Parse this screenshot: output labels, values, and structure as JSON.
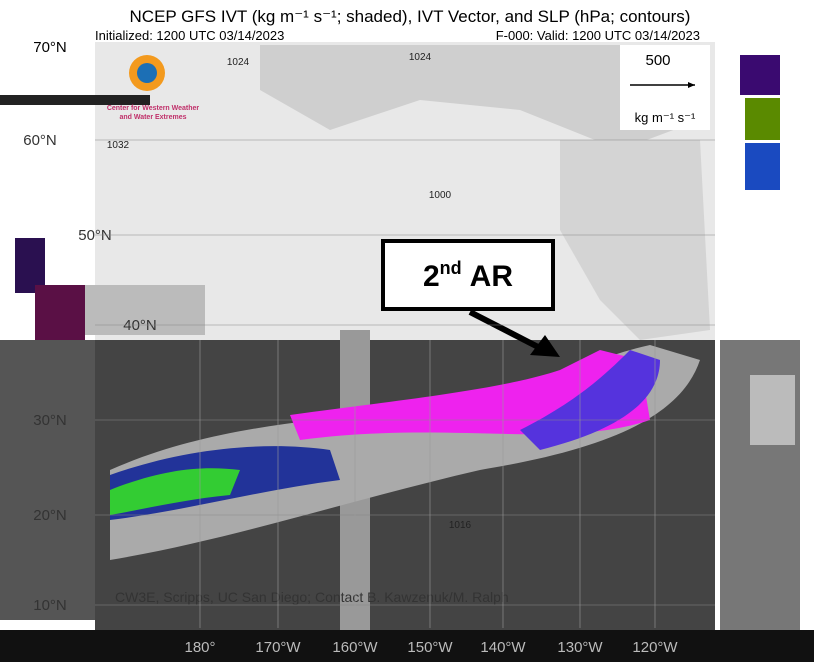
{
  "header": {
    "title": "NCEP GFS IVT (kg m⁻¹ s⁻¹; shaded), IVT Vector, and SLP (hPa; contours)",
    "initialized": "Initialized: 1200 UTC 03/14/2023",
    "valid": "F-000: Valid: 1200 UTC 03/14/2023"
  },
  "logo": {
    "line1": "Center for Western Weather",
    "line2": "and Water Extremes"
  },
  "vector_key": {
    "magnitude": "500",
    "unit": "kg m⁻¹ s⁻¹"
  },
  "latitude_labels": [
    "70°N",
    "60°N",
    "50°N",
    "40°N",
    "30°N",
    "20°N",
    "10°N"
  ],
  "longitude_labels": [
    "180°",
    "170°W",
    "160°W",
    "150°W",
    "140°W",
    "130°W",
    "120°W"
  ],
  "contour_labels": [
    "1024",
    "1024",
    "1032",
    "1000",
    "1016"
  ],
  "annotation": {
    "number": "2",
    "suffix": "nd",
    "label": "AR"
  },
  "credit": "CW3E, Scripps, UC San Diego; Contact B. Kawzenuk/M. Ralph"
}
